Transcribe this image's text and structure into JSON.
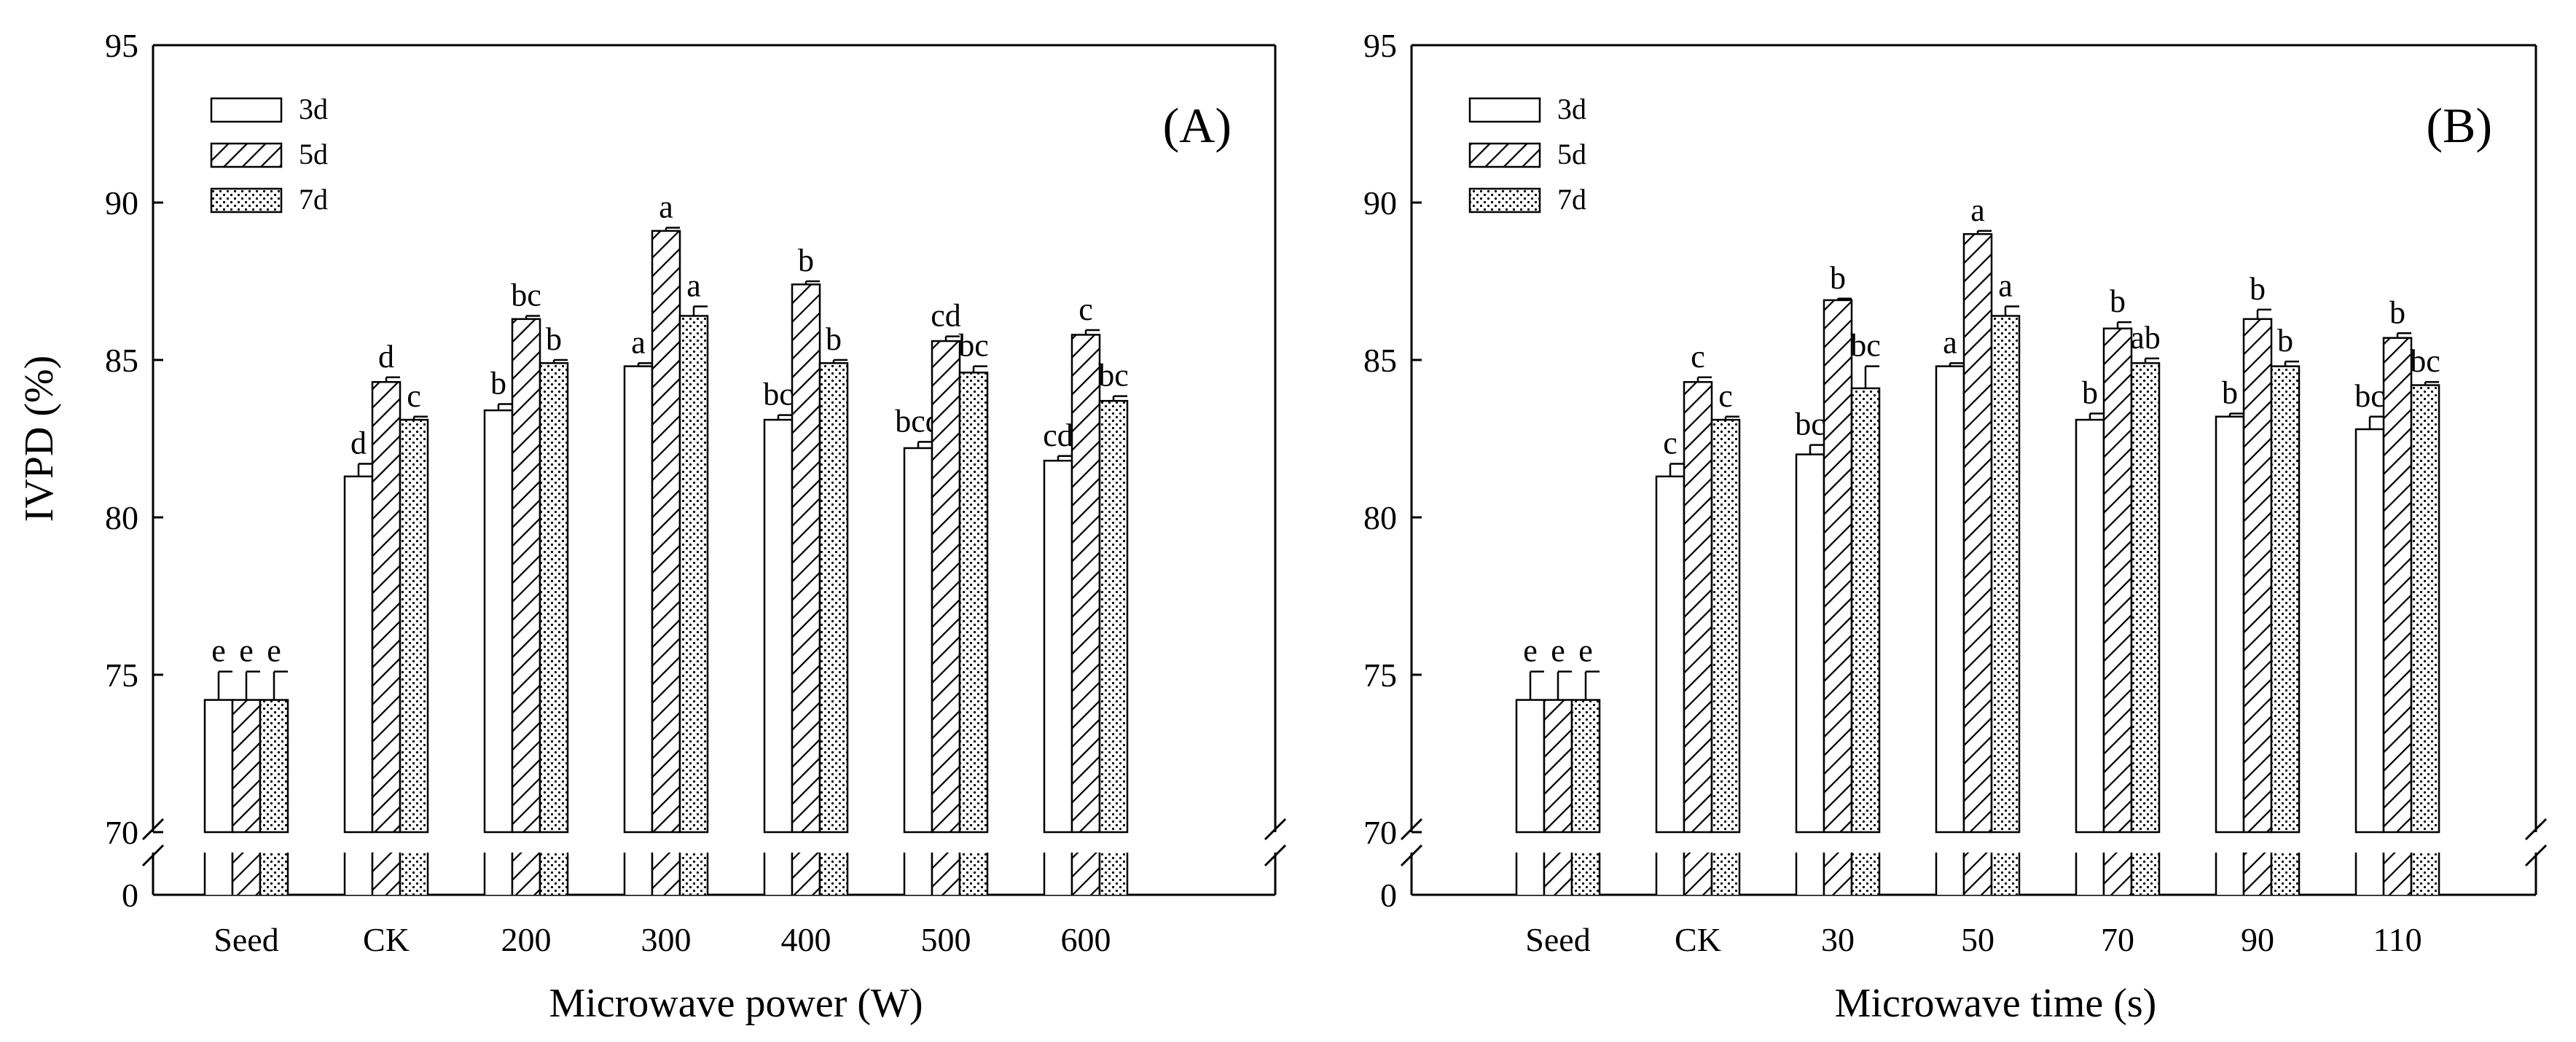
{
  "chart_data": [
    {
      "type": "bar",
      "panel_label": "(A)",
      "xlabel": "Microwave power (W)",
      "ylabel": "IVPD (%)",
      "ylim": [
        70,
        95
      ],
      "y_break": true,
      "y_ticks": [
        "95",
        "90",
        "85",
        "80",
        "75",
        "70",
        "0"
      ],
      "legend_position": "top-left",
      "categories": [
        "Seed",
        "CK",
        "200",
        "300",
        "400",
        "500",
        "600"
      ],
      "series": [
        {
          "name": "3d",
          "pattern": "open",
          "values": [
            74.2,
            81.3,
            83.4,
            84.8,
            83.1,
            82.2,
            81.8
          ],
          "errors": [
            0.9,
            0.4,
            0.2,
            0.1,
            0.15,
            0.2,
            0.15
          ],
          "letters": [
            "e",
            "d",
            "b",
            "a",
            "bc",
            "bcd",
            "cd"
          ]
        },
        {
          "name": "5d",
          "pattern": "hatch",
          "values": [
            74.2,
            84.3,
            86.3,
            89.1,
            87.4,
            85.6,
            85.8
          ],
          "errors": [
            0.9,
            0.15,
            0.1,
            0.1,
            0.1,
            0.15,
            0.15
          ],
          "letters": [
            "e",
            "d",
            "bc",
            "a",
            "b",
            "cd",
            "c"
          ]
        },
        {
          "name": "7d",
          "pattern": "dotted",
          "values": [
            74.2,
            83.1,
            84.9,
            86.4,
            84.9,
            84.6,
            83.7
          ],
          "errors": [
            0.9,
            0.1,
            0.1,
            0.3,
            0.1,
            0.2,
            0.15
          ],
          "letters": [
            "e",
            "c",
            "b",
            "a",
            "b",
            "bc",
            "bc"
          ]
        }
      ]
    },
    {
      "type": "bar",
      "panel_label": "(B)",
      "xlabel": "Microwave time (s)",
      "ylabel": "",
      "ylim": [
        70,
        95
      ],
      "y_break": true,
      "y_ticks": [
        "95",
        "90",
        "85",
        "80",
        "75",
        "70",
        "0"
      ],
      "legend_position": "top-left",
      "categories": [
        "Seed",
        "CK",
        "30",
        "50",
        "70",
        "90",
        "110"
      ],
      "series": [
        {
          "name": "3d",
          "pattern": "open",
          "values": [
            74.2,
            81.3,
            82.0,
            84.8,
            83.1,
            83.2,
            82.8
          ],
          "errors": [
            0.9,
            0.4,
            0.3,
            0.1,
            0.2,
            0.1,
            0.4
          ],
          "letters": [
            "e",
            "c",
            "bc",
            "a",
            "b",
            "b",
            "bc"
          ]
        },
        {
          "name": "5d",
          "pattern": "hatch",
          "values": [
            74.2,
            84.3,
            86.9,
            89.0,
            86.0,
            86.3,
            85.7
          ],
          "errors": [
            0.9,
            0.15,
            0.05,
            0.1,
            0.2,
            0.3,
            0.15
          ],
          "letters": [
            "e",
            "c",
            "b",
            "a",
            "b",
            "b",
            "b"
          ]
        },
        {
          "name": "7d",
          "pattern": "dotted",
          "values": [
            74.2,
            83.1,
            84.1,
            86.4,
            84.9,
            84.8,
            84.2
          ],
          "errors": [
            0.9,
            0.1,
            0.7,
            0.3,
            0.15,
            0.15,
            0.1
          ],
          "letters": [
            "e",
            "c",
            "bc",
            "a",
            "ab",
            "b",
            "bc"
          ]
        }
      ]
    }
  ]
}
